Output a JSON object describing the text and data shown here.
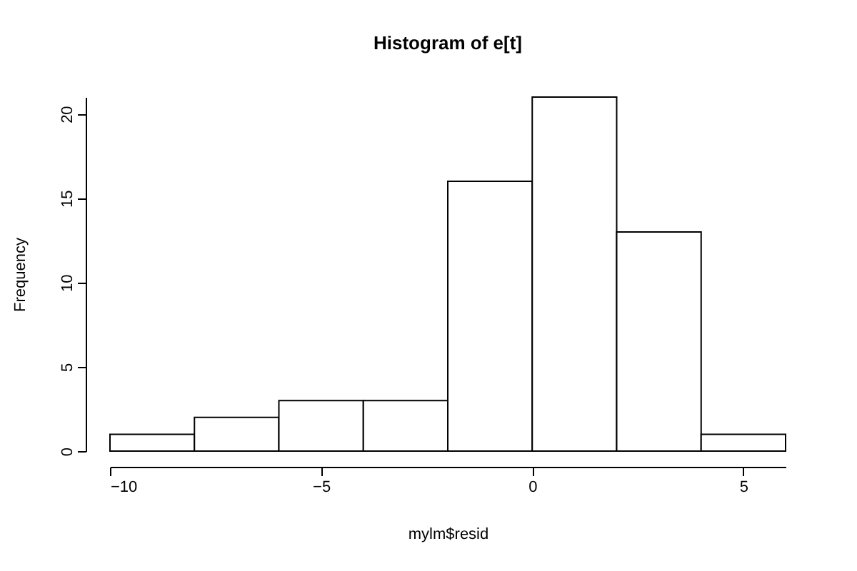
{
  "chart_data": {
    "type": "histogram",
    "title": "Histogram of e[t]",
    "xlabel": "mylm$resid",
    "ylabel": "Frequency",
    "bins": [
      -10,
      -8,
      -6,
      -4,
      -2,
      0,
      2,
      4,
      6
    ],
    "values": [
      1,
      2,
      3,
      3,
      16,
      21,
      13,
      1
    ],
    "color": "#ffffff",
    "xlim": [
      -10,
      6
    ],
    "xticks": [
      -10,
      -5,
      0,
      5
    ],
    "ylim": [
      0,
      21
    ],
    "yticks": [
      0,
      5,
      10,
      15,
      20
    ],
    "grid": false
  }
}
